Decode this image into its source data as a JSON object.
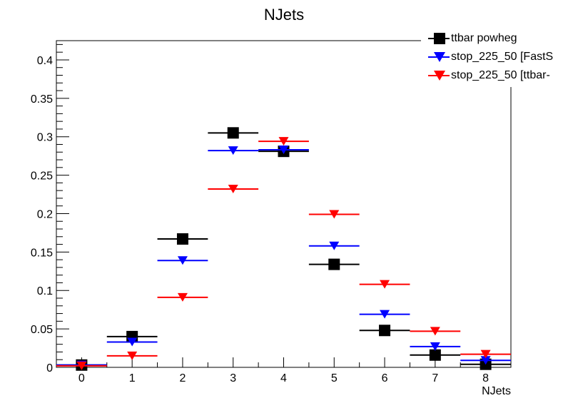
{
  "chart_data": {
    "type": "scatter",
    "title": "NJets",
    "xlabel": "NJets",
    "ylabel": "",
    "xlim": [
      -0.5,
      8.5
    ],
    "ylim": [
      0,
      0.425
    ],
    "x_ticks": [
      "0",
      "1",
      "2",
      "3",
      "4",
      "5",
      "6",
      "7",
      "8"
    ],
    "y_ticks": [
      "0",
      "0.05",
      "0.1",
      "0.15",
      "0.2",
      "0.25",
      "0.3",
      "0.35",
      "0.4"
    ],
    "grid": false,
    "legend_position": "top-right",
    "x": [
      0,
      1,
      2,
      3,
      4,
      5,
      6,
      7,
      8
    ],
    "series": [
      {
        "name": "ttbar powheg",
        "color": "#000000",
        "marker": "square",
        "values": [
          0.003,
          0.04,
          0.167,
          0.305,
          0.281,
          0.134,
          0.048,
          0.016,
          0.004
        ]
      },
      {
        "name": "stop_225_50 [FastS",
        "color": "#0000ff",
        "marker": "triangle-down",
        "values": [
          0.003,
          0.033,
          0.139,
          0.282,
          0.283,
          0.158,
          0.069,
          0.027,
          0.009
        ]
      },
      {
        "name": "stop_225_50 [ttbar-",
        "color": "#ff0000",
        "marker": "triangle-down",
        "values": [
          0.002,
          0.015,
          0.091,
          0.232,
          0.294,
          0.199,
          0.108,
          0.047,
          0.017
        ]
      }
    ]
  }
}
